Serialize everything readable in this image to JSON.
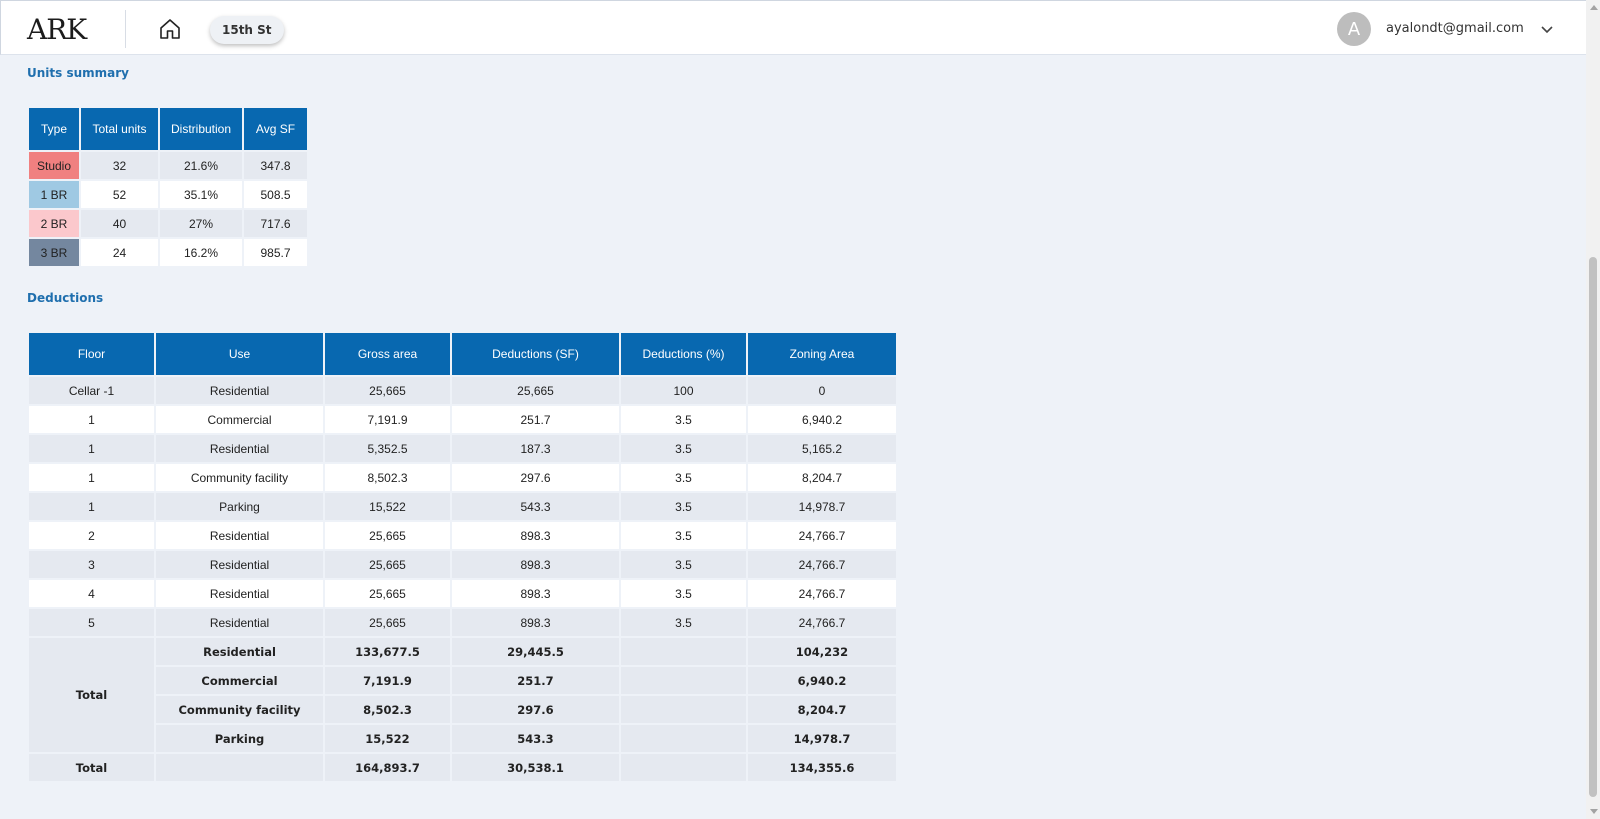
{
  "header": {
    "logo": "ARK",
    "project_chip": "15th St",
    "avatar_letter": "A",
    "user_email": "ayalondt@gmail.com"
  },
  "units_summary": {
    "title": "Units summary",
    "columns": [
      "Type",
      "Total units",
      "Distribution",
      "Avg SF"
    ],
    "rows": [
      {
        "type": "Studio",
        "color": "#f08080",
        "total": "32",
        "distribution": "21.6%",
        "avg_sf": "347.8"
      },
      {
        "type": "1 BR",
        "color": "#9fc9e3",
        "total": "52",
        "distribution": "35.1%",
        "avg_sf": "508.5"
      },
      {
        "type": "2 BR",
        "color": "#fbc8cc",
        "total": "40",
        "distribution": "27%",
        "avg_sf": "717.6"
      },
      {
        "type": "3 BR",
        "color": "#74879f",
        "total": "24",
        "distribution": "16.2%",
        "avg_sf": "985.7"
      }
    ]
  },
  "deductions": {
    "title": "Deductions",
    "columns": [
      "Floor",
      "Use",
      "Gross area",
      "Deductions (SF)",
      "Deductions (%)",
      "Zoning Area"
    ],
    "rows": [
      {
        "floor": "Cellar -1",
        "use": "Residential",
        "gross": "25,665",
        "ded_sf": "25,665",
        "ded_pct": "100",
        "zoning": "0"
      },
      {
        "floor": "1",
        "use": "Commercial",
        "gross": "7,191.9",
        "ded_sf": "251.7",
        "ded_pct": "3.5",
        "zoning": "6,940.2"
      },
      {
        "floor": "1",
        "use": "Residential",
        "gross": "5,352.5",
        "ded_sf": "187.3",
        "ded_pct": "3.5",
        "zoning": "5,165.2"
      },
      {
        "floor": "1",
        "use": "Community facility",
        "gross": "8,502.3",
        "ded_sf": "297.6",
        "ded_pct": "3.5",
        "zoning": "8,204.7"
      },
      {
        "floor": "1",
        "use": "Parking",
        "gross": "15,522",
        "ded_sf": "543.3",
        "ded_pct": "3.5",
        "zoning": "14,978.7"
      },
      {
        "floor": "2",
        "use": "Residential",
        "gross": "25,665",
        "ded_sf": "898.3",
        "ded_pct": "3.5",
        "zoning": "24,766.7"
      },
      {
        "floor": "3",
        "use": "Residential",
        "gross": "25,665",
        "ded_sf": "898.3",
        "ded_pct": "3.5",
        "zoning": "24,766.7"
      },
      {
        "floor": "4",
        "use": "Residential",
        "gross": "25,665",
        "ded_sf": "898.3",
        "ded_pct": "3.5",
        "zoning": "24,766.7"
      },
      {
        "floor": "5",
        "use": "Residential",
        "gross": "25,665",
        "ded_sf": "898.3",
        "ded_pct": "3.5",
        "zoning": "24,766.7"
      }
    ],
    "subtotal_label": "Total",
    "subtotals": [
      {
        "use": "Residential",
        "gross": "133,677.5",
        "ded_sf": "29,445.5",
        "zoning": "104,232"
      },
      {
        "use": "Commercial",
        "gross": "7,191.9",
        "ded_sf": "251.7",
        "zoning": "6,940.2"
      },
      {
        "use": "Community facility",
        "gross": "8,502.3",
        "ded_sf": "297.6",
        "zoning": "8,204.7"
      },
      {
        "use": "Parking",
        "gross": "15,522",
        "ded_sf": "543.3",
        "zoning": "14,978.7"
      }
    ],
    "grand_total": {
      "label": "Total",
      "gross": "164,893.7",
      "ded_sf": "30,538.1",
      "zoning": "134,355.6"
    }
  }
}
